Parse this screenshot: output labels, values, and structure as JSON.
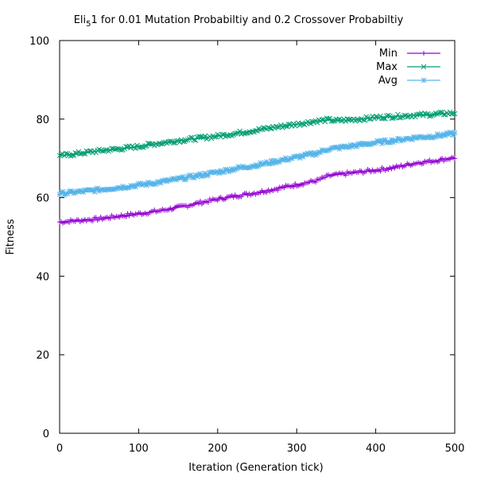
{
  "chart_data": {
    "type": "line",
    "title": {
      "main": "Eli",
      "sub": "5",
      "rest": "1 for 0.01 Mutation Probabiltiy and 0.2 Crossover Probabiltiy"
    },
    "xlabel": "Iteration (Generation tick)",
    "ylabel": "Fitness",
    "xlim": [
      0,
      500
    ],
    "ylim": [
      0,
      100
    ],
    "xticks": [
      "0",
      "100",
      "200",
      "300",
      "400",
      "500"
    ],
    "yticks": [
      "0",
      "20",
      "40",
      "60",
      "80",
      "100"
    ],
    "grid": false,
    "legend_position": "top-right",
    "x": [
      0,
      25,
      50,
      75,
      100,
      125,
      150,
      175,
      200,
      225,
      250,
      275,
      300,
      325,
      340,
      350,
      375,
      400,
      425,
      450,
      475,
      500
    ],
    "series": [
      {
        "name": "Min",
        "color": "#9400d3",
        "marker": "plus",
        "values": [
          53.8,
          54.2,
          54.6,
          55.3,
          55.9,
          56.6,
          57.5,
          58.6,
          59.6,
          60.5,
          61.3,
          62.3,
          63.3,
          64.3,
          65.5,
          65.8,
          66.4,
          67.0,
          67.7,
          68.8,
          69.4,
          70.2
        ]
      },
      {
        "name": "Max",
        "color": "#009e73",
        "marker": "cross",
        "values": [
          70.6,
          71.3,
          71.9,
          72.4,
          73.0,
          73.8,
          74.5,
          75.1,
          75.7,
          76.4,
          77.2,
          78.0,
          78.7,
          79.5,
          79.8,
          79.6,
          79.9,
          80.4,
          80.7,
          81.0,
          81.2,
          81.6
        ]
      },
      {
        "name": "Avg",
        "color": "#56b4e9",
        "marker": "star",
        "values": [
          61.0,
          61.5,
          62.0,
          62.6,
          63.2,
          63.9,
          64.7,
          65.6,
          66.5,
          67.5,
          68.3,
          69.3,
          70.3,
          71.3,
          72.4,
          72.6,
          73.3,
          74.0,
          74.6,
          75.3,
          75.7,
          76.3
        ]
      }
    ]
  }
}
